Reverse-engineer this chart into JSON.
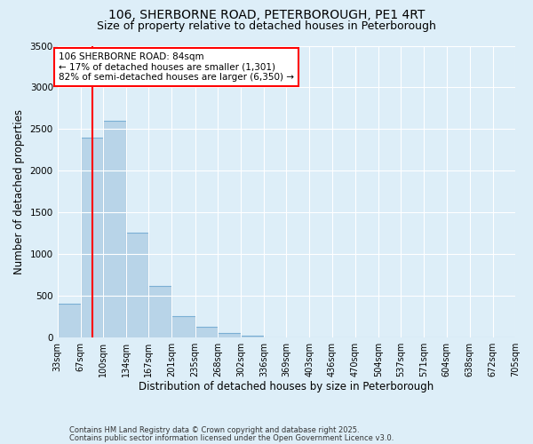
{
  "title_line1": "106, SHERBORNE ROAD, PETERBOROUGH, PE1 4RT",
  "title_line2": "Size of property relative to detached houses in Peterborough",
  "xlabel": "Distribution of detached houses by size in Peterborough",
  "ylabel": "Number of detached properties",
  "bins": [
    33,
    67,
    100,
    134,
    167,
    201,
    235,
    268,
    302,
    336,
    369,
    403,
    436,
    470,
    504,
    537,
    571,
    604,
    638,
    672,
    705
  ],
  "counts": [
    400,
    2400,
    2600,
    1250,
    620,
    250,
    120,
    50,
    20,
    0,
    0,
    0,
    0,
    0,
    0,
    0,
    0,
    0,
    0,
    0
  ],
  "bar_color": "#b8d4e8",
  "bar_edge_color": "#7aafd4",
  "property_line_x": 84,
  "property_line_color": "red",
  "annotation_text": "106 SHERBORNE ROAD: 84sqm\n← 17% of detached houses are smaller (1,301)\n82% of semi-detached houses are larger (6,350) →",
  "annotation_box_color": "red",
  "annotation_box_fill": "white",
  "ylim": [
    0,
    3500
  ],
  "yticks": [
    0,
    500,
    1000,
    1500,
    2000,
    2500,
    3000,
    3500
  ],
  "background_color": "#ddeef8",
  "grid_color": "white",
  "footnote_line1": "Contains HM Land Registry data © Crown copyright and database right 2025.",
  "footnote_line2": "Contains public sector information licensed under the Open Government Licence v3.0.",
  "title_fontsize": 10,
  "subtitle_fontsize": 9,
  "tick_label_fontsize": 7,
  "axis_label_fontsize": 8.5,
  "annot_fontsize": 7.5
}
